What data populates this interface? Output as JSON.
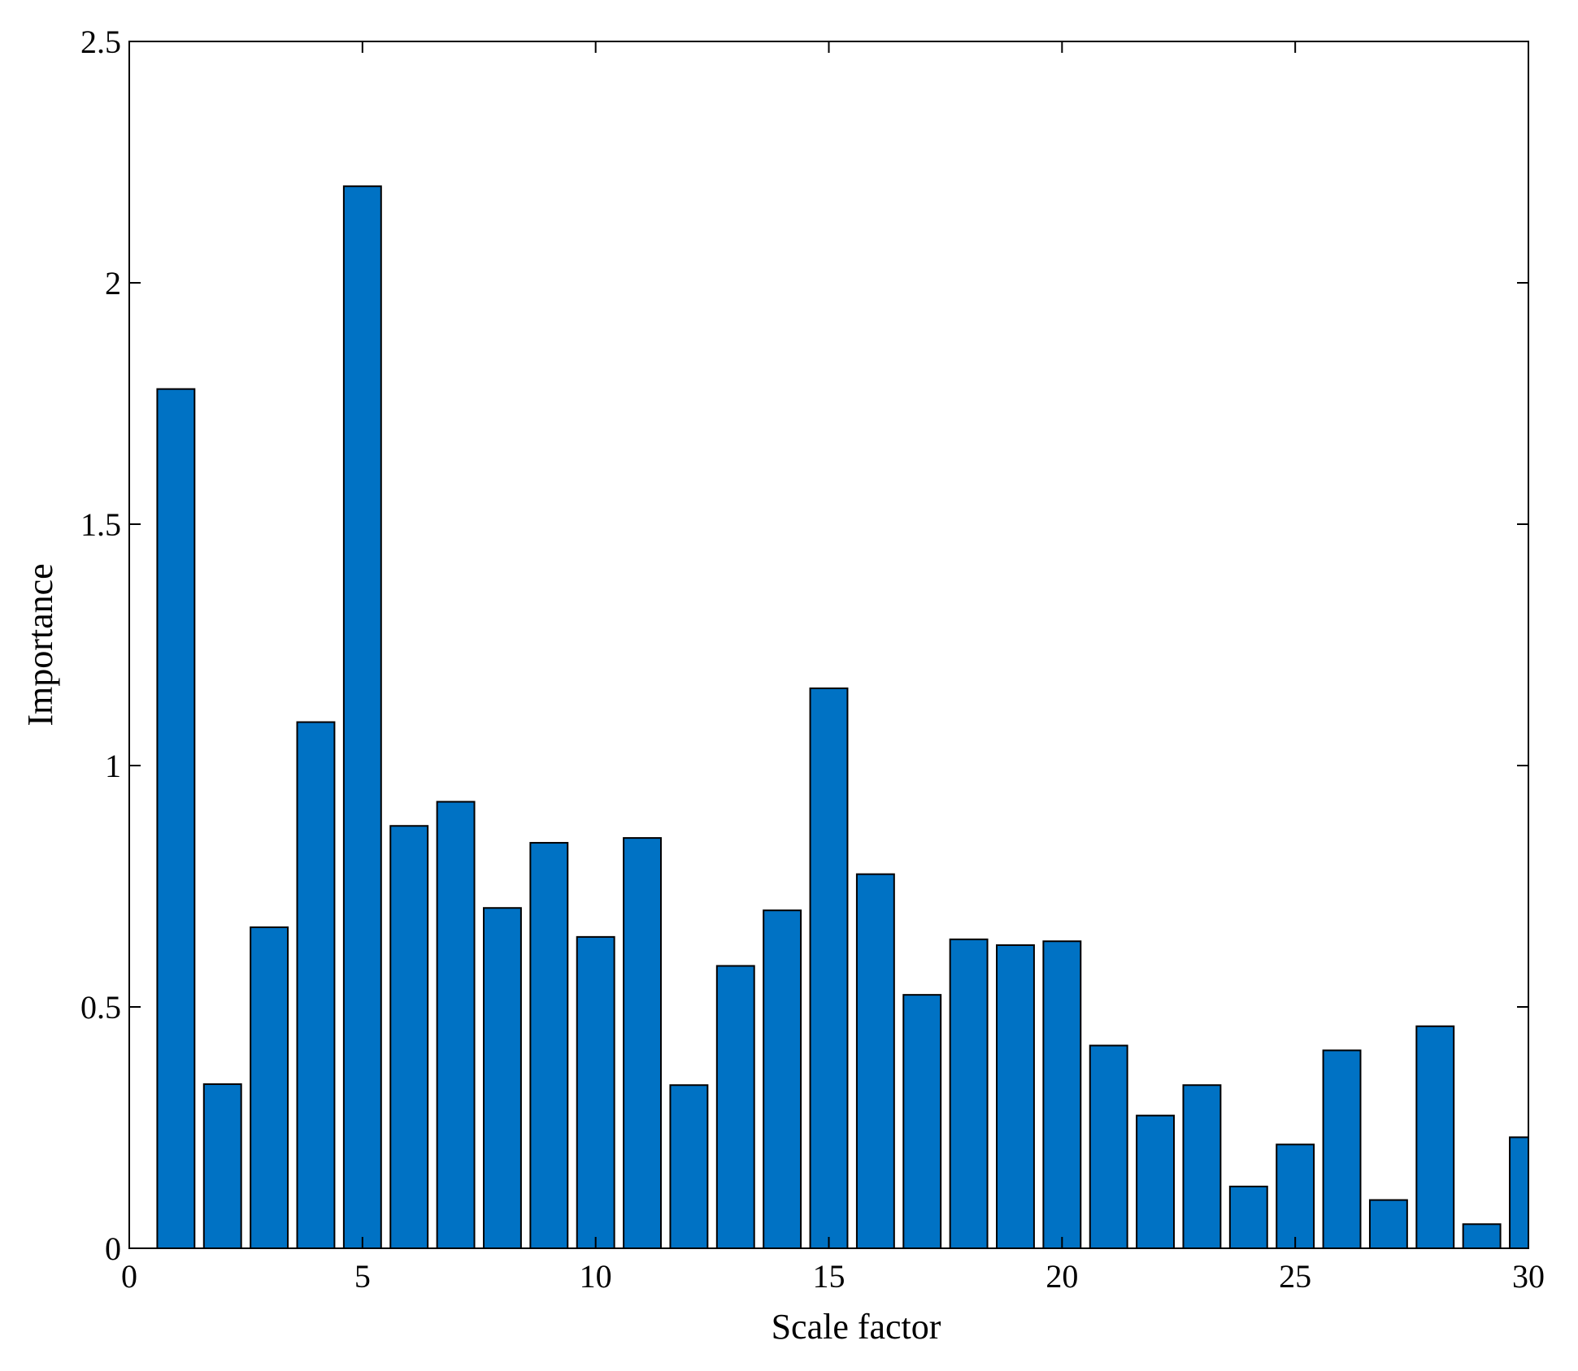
{
  "chart_data": {
    "type": "bar",
    "title": "",
    "xlabel": "Scale factor",
    "ylabel": "Importance",
    "xlim": [
      0,
      30
    ],
    "ylim": [
      0,
      2.5
    ],
    "xticks": [
      0,
      5,
      10,
      15,
      20,
      25,
      30
    ],
    "yticks": [
      0,
      0.5,
      1,
      1.5,
      2,
      2.5
    ],
    "xtick_labels": [
      "0",
      "5",
      "10",
      "15",
      "20",
      "25",
      "30"
    ],
    "ytick_labels": [
      "0",
      "0.5",
      "1",
      "1.5",
      "2",
      "2.5"
    ],
    "grid": false,
    "bar_color": "#0072C4",
    "edge_color": "#000000",
    "categories": [
      1,
      2,
      3,
      4,
      5,
      6,
      7,
      8,
      9,
      10,
      11,
      12,
      13,
      14,
      15,
      16,
      17,
      18,
      19,
      20,
      21,
      22,
      23,
      24,
      25,
      26,
      27,
      28,
      29,
      30
    ],
    "values": [
      1.78,
      0.34,
      0.665,
      1.09,
      2.2,
      0.875,
      0.925,
      0.705,
      0.84,
      0.645,
      0.85,
      0.338,
      0.585,
      0.7,
      1.16,
      0.775,
      0.525,
      0.64,
      0.628,
      0.636,
      0.42,
      0.275,
      0.338,
      0.128,
      0.215,
      0.41,
      0.1,
      0.46,
      0.05,
      0.23
    ]
  }
}
